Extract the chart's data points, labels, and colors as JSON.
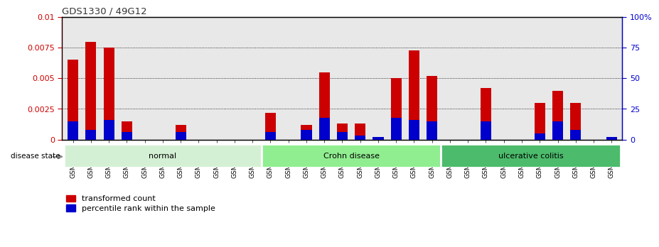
{
  "title": "GDS1330 / 49G12",
  "samples": [
    "GSM29595",
    "GSM29596",
    "GSM29597",
    "GSM29598",
    "GSM29599",
    "GSM29600",
    "GSM29601",
    "GSM29602",
    "GSM29603",
    "GSM29604",
    "GSM29605",
    "GSM29606",
    "GSM29607",
    "GSM29608",
    "GSM29609",
    "GSM29610",
    "GSM29611",
    "GSM29612",
    "GSM29613",
    "GSM29614",
    "GSM29615",
    "GSM29616",
    "GSM29617",
    "GSM29618",
    "GSM29619",
    "GSM29620",
    "GSM29621",
    "GSM29622",
    "GSM29623",
    "GSM29624",
    "GSM29625"
  ],
  "red_values": [
    0.0065,
    0.008,
    0.0075,
    0.0015,
    0.0,
    0.0,
    0.0012,
    0.0,
    0.0,
    0.0,
    0.0,
    0.0022,
    0.0,
    0.0012,
    0.0055,
    0.0013,
    0.0013,
    0.0,
    0.005,
    0.0073,
    0.0052,
    0.0,
    0.0,
    0.0042,
    0.0,
    0.0,
    0.003,
    0.004,
    0.003,
    0.0,
    0.0
  ],
  "blue_values": [
    15,
    8,
    16,
    6,
    0,
    0,
    6,
    0,
    0,
    0,
    0,
    6,
    0,
    8,
    18,
    6,
    3,
    2,
    18,
    16,
    15,
    0,
    0,
    15,
    0,
    0,
    5,
    15,
    8,
    0,
    2
  ],
  "groups": [
    {
      "label": "normal",
      "start": 0,
      "end": 10,
      "color": "#d4f0d4"
    },
    {
      "label": "Crohn disease",
      "start": 11,
      "end": 20,
      "color": "#90ee90"
    },
    {
      "label": "ulcerative colitis",
      "start": 21,
      "end": 30,
      "color": "#4cbb6c"
    }
  ],
  "ylim_left": [
    0,
    0.01
  ],
  "ylim_right": [
    0,
    100
  ],
  "yticks_left": [
    0,
    0.0025,
    0.005,
    0.0075,
    0.01
  ],
  "yticks_right": [
    0,
    25,
    50,
    75,
    100
  ],
  "ytick_labels_left": [
    "0",
    "0.0025",
    "0.005",
    "0.0075",
    "0.01"
  ],
  "ytick_labels_right": [
    "0",
    "25",
    "50",
    "75",
    "100%"
  ],
  "red_color": "#cc0000",
  "blue_color": "#0000cc",
  "bar_width": 0.6,
  "plot_bg_color": "#e8e8e8",
  "disease_state_label": "disease state",
  "legend_red": "transformed count",
  "legend_blue": "percentile rank within the sample",
  "title_color": "#333333",
  "left_axis_color": "#cc0000",
  "right_axis_color": "#0000cc"
}
